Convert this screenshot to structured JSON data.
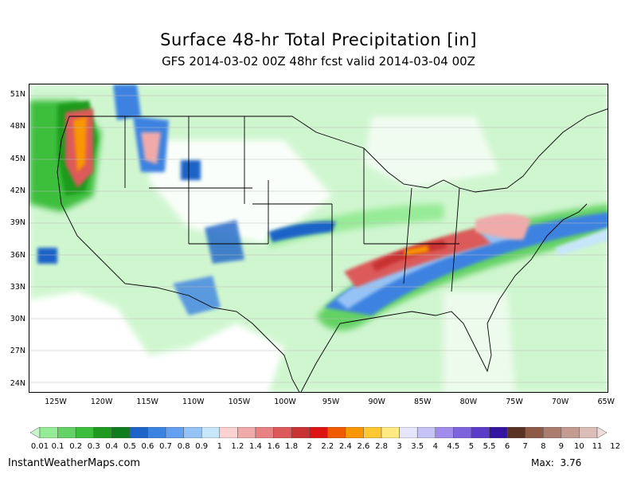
{
  "title": "Surface 48-hr Total Precipitation [in]",
  "subtitle": "GFS 2014-03-02 00Z 48hr fcst valid 2014-03-04 00Z",
  "latitude_labels": [
    "51N",
    "48N",
    "45N",
    "42N",
    "39N",
    "36N",
    "33N",
    "30N",
    "27N",
    "24N"
  ],
  "longitude_labels": [
    "125W",
    "120W",
    "115W",
    "110W",
    "105W",
    "100W",
    "95W",
    "90W",
    "85W",
    "80W",
    "75W",
    "70W",
    "65W"
  ],
  "colorbar": {
    "labels": [
      "0.01",
      "0.1",
      "0.2",
      "0.3",
      "0.4",
      "0.5",
      "0.6",
      "0.7",
      "0.8",
      "0.9",
      "1",
      "1.2",
      "1.4",
      "1.6",
      "1.8",
      "2",
      "2.2",
      "2.4",
      "2.6",
      "2.8",
      "3",
      "3.5",
      "4",
      "4.5",
      "5",
      "5.5",
      "6",
      "7",
      "8",
      "9",
      "10",
      "11",
      "12"
    ],
    "colors": [
      "#c8f5c8",
      "#96eb96",
      "#64d264",
      "#3cbe3c",
      "#1e9b1e",
      "#0f7d1e",
      "#1e64c8",
      "#3c82e1",
      "#64a0f0",
      "#96c3f5",
      "#c8e6fa",
      "#fad2d2",
      "#f0aaaa",
      "#e68282",
      "#dc5a5a",
      "#c83232",
      "#dc1414",
      "#f05a00",
      "#fa9600",
      "#ffc832",
      "#ffeb82",
      "#e6e6fa",
      "#c3c3f5",
      "#a08ceb",
      "#7d64dc",
      "#5a3cc8",
      "#3214a0",
      "#5a3223",
      "#8c5a46",
      "#aa7d6e",
      "#c39b91",
      "#dcbeb9",
      "#f0dcdc"
    ]
  },
  "footer": {
    "site": "InstantWeatherMaps.com",
    "max_label": "Max:",
    "max_value": "3.76"
  }
}
